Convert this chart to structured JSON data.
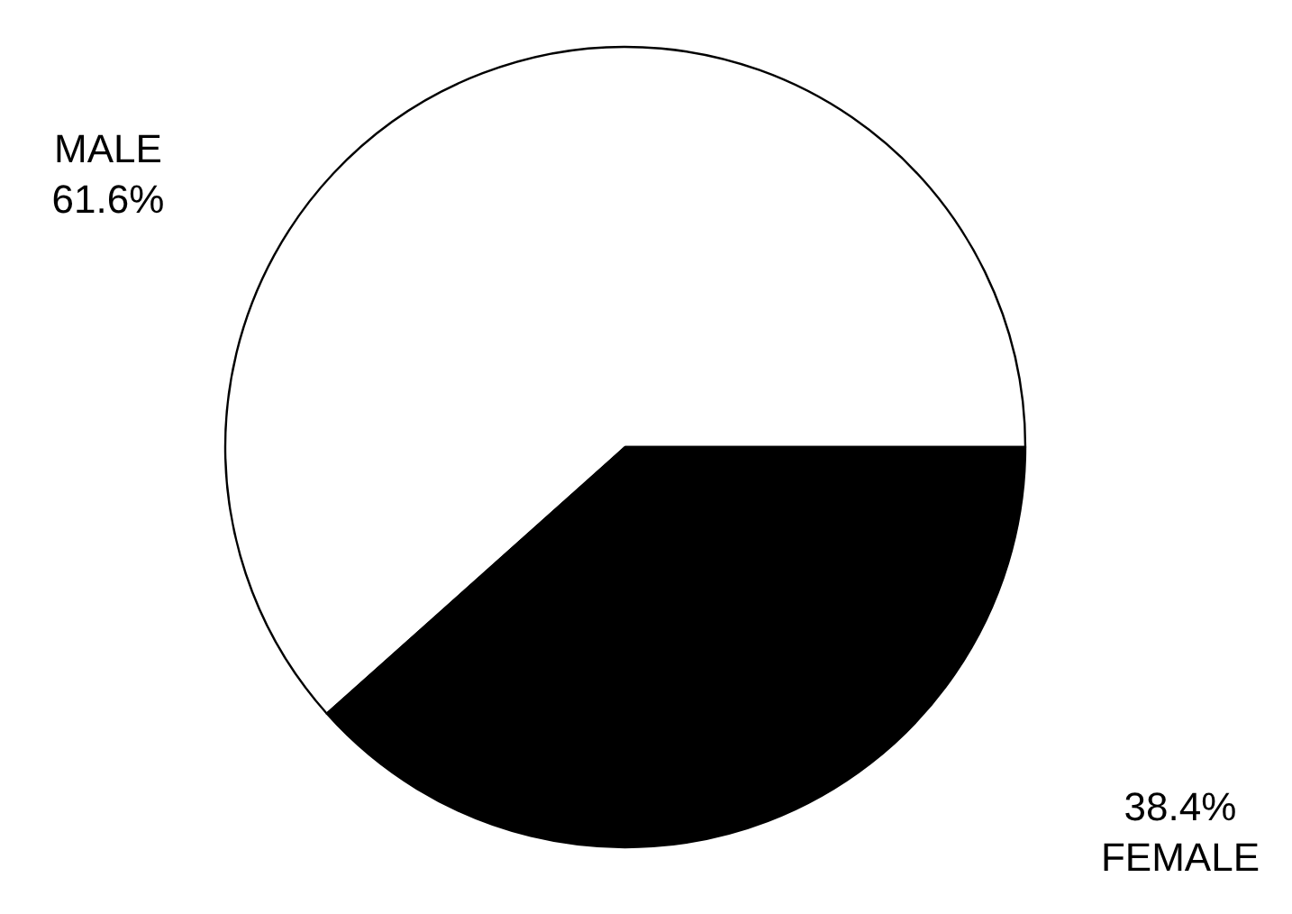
{
  "chart_data": {
    "type": "pie",
    "categories": [
      "MALE",
      "FEMALE"
    ],
    "values": [
      61.6,
      38.4
    ],
    "value_labels": [
      "61.6%",
      "38.4%"
    ],
    "colors": [
      "#ffffff",
      "#000000"
    ]
  }
}
